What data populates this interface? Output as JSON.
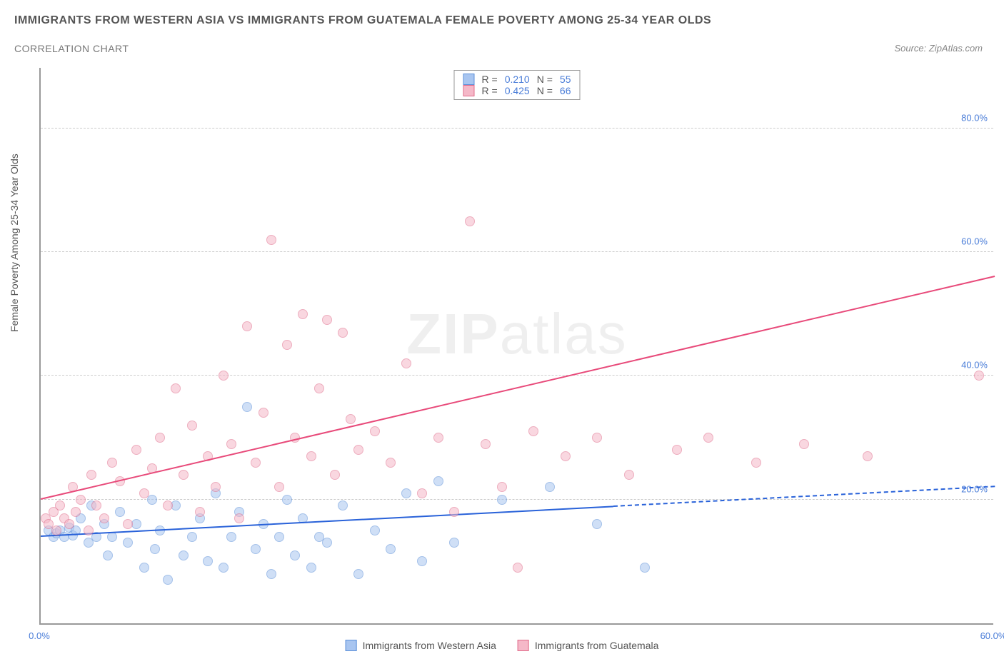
{
  "title": "IMMIGRANTS FROM WESTERN ASIA VS IMMIGRANTS FROM GUATEMALA FEMALE POVERTY AMONG 25-34 YEAR OLDS",
  "subtitle": "CORRELATION CHART",
  "source": "Source: ZipAtlas.com",
  "watermark": {
    "bold": "ZIP",
    "light": "atlas"
  },
  "ylabel": "Female Poverty Among 25-34 Year Olds",
  "chart": {
    "type": "scatter",
    "xlim": [
      0,
      60
    ],
    "ylim": [
      0,
      90
    ],
    "x_ticks": [
      {
        "v": 0,
        "l": "0.0%"
      },
      {
        "v": 60,
        "l": "60.0%"
      }
    ],
    "y_ticks_right": [
      {
        "v": 20,
        "l": "20.0%"
      },
      {
        "v": 40,
        "l": "40.0%"
      },
      {
        "v": 60,
        "l": "60.0%"
      },
      {
        "v": 80,
        "l": "80.0%"
      }
    ],
    "grid_y": [
      20,
      40,
      60,
      80
    ],
    "grid_color": "#cccccc",
    "background_color": "#ffffff",
    "axis_color": "#999999",
    "tick_label_color": "#4a7dd8",
    "marker_radius": 7,
    "marker_opacity": 0.55,
    "series": [
      {
        "name": "Immigrants from Western Asia",
        "fill": "#a8c5f0",
        "stroke": "#5b8fd8",
        "R": "0.210",
        "N": "55",
        "trend": {
          "x1": 0,
          "y1": 14,
          "x2": 60,
          "y2": 22,
          "color": "#2962d9",
          "solid_until_x": 36
        },
        "points": [
          [
            0.5,
            15
          ],
          [
            0.8,
            14
          ],
          [
            1.0,
            14.5
          ],
          [
            1.2,
            15
          ],
          [
            1.5,
            14
          ],
          [
            1.8,
            15.5
          ],
          [
            2.0,
            14.2
          ],
          [
            2.2,
            15
          ],
          [
            2.5,
            17
          ],
          [
            3.0,
            13
          ],
          [
            3.2,
            19
          ],
          [
            3.5,
            14
          ],
          [
            4.0,
            16
          ],
          [
            4.2,
            11
          ],
          [
            4.5,
            14
          ],
          [
            5.0,
            18
          ],
          [
            5.5,
            13
          ],
          [
            6.0,
            16
          ],
          [
            6.5,
            9
          ],
          [
            7.0,
            20
          ],
          [
            7.2,
            12
          ],
          [
            7.5,
            15
          ],
          [
            8.0,
            7
          ],
          [
            8.5,
            19
          ],
          [
            9.0,
            11
          ],
          [
            9.5,
            14
          ],
          [
            10,
            17
          ],
          [
            10.5,
            10
          ],
          [
            11,
            21
          ],
          [
            11.5,
            9
          ],
          [
            12,
            14
          ],
          [
            12.5,
            18
          ],
          [
            13,
            35
          ],
          [
            13.5,
            12
          ],
          [
            14,
            16
          ],
          [
            14.5,
            8
          ],
          [
            15,
            14
          ],
          [
            15.5,
            20
          ],
          [
            16,
            11
          ],
          [
            16.5,
            17
          ],
          [
            17,
            9
          ],
          [
            17.5,
            14
          ],
          [
            18,
            13
          ],
          [
            19,
            19
          ],
          [
            20,
            8
          ],
          [
            21,
            15
          ],
          [
            22,
            12
          ],
          [
            23,
            21
          ],
          [
            24,
            10
          ],
          [
            25,
            23
          ],
          [
            26,
            13
          ],
          [
            29,
            20
          ],
          [
            32,
            22
          ],
          [
            35,
            16
          ],
          [
            38,
            9
          ]
        ]
      },
      {
        "name": "Immigrants from Guatemala",
        "fill": "#f5b8c8",
        "stroke": "#e06b8a",
        "R": "0.425",
        "N": "66",
        "trend": {
          "x1": 0,
          "y1": 20,
          "x2": 60,
          "y2": 56,
          "color": "#e84a7a",
          "solid_until_x": 60
        },
        "points": [
          [
            0.3,
            17
          ],
          [
            0.5,
            16
          ],
          [
            0.8,
            18
          ],
          [
            1.0,
            15
          ],
          [
            1.2,
            19
          ],
          [
            1.5,
            17
          ],
          [
            1.8,
            16
          ],
          [
            2.0,
            22
          ],
          [
            2.2,
            18
          ],
          [
            2.5,
            20
          ],
          [
            3.0,
            15
          ],
          [
            3.2,
            24
          ],
          [
            3.5,
            19
          ],
          [
            4.0,
            17
          ],
          [
            4.5,
            26
          ],
          [
            5.0,
            23
          ],
          [
            5.5,
            16
          ],
          [
            6.0,
            28
          ],
          [
            6.5,
            21
          ],
          [
            7.0,
            25
          ],
          [
            7.5,
            30
          ],
          [
            8.0,
            19
          ],
          [
            8.5,
            38
          ],
          [
            9.0,
            24
          ],
          [
            9.5,
            32
          ],
          [
            10,
            18
          ],
          [
            10.5,
            27
          ],
          [
            11,
            22
          ],
          [
            11.5,
            40
          ],
          [
            12,
            29
          ],
          [
            12.5,
            17
          ],
          [
            13,
            48
          ],
          [
            13.5,
            26
          ],
          [
            14,
            34
          ],
          [
            14.5,
            62
          ],
          [
            15,
            22
          ],
          [
            15.5,
            45
          ],
          [
            16,
            30
          ],
          [
            16.5,
            50
          ],
          [
            17,
            27
          ],
          [
            17.5,
            38
          ],
          [
            18,
            49
          ],
          [
            18.5,
            24
          ],
          [
            19,
            47
          ],
          [
            19.5,
            33
          ],
          [
            20,
            28
          ],
          [
            21,
            31
          ],
          [
            22,
            26
          ],
          [
            23,
            42
          ],
          [
            24,
            21
          ],
          [
            25,
            30
          ],
          [
            26,
            18
          ],
          [
            27,
            65
          ],
          [
            28,
            29
          ],
          [
            29,
            22
          ],
          [
            30,
            9
          ],
          [
            31,
            31
          ],
          [
            33,
            27
          ],
          [
            35,
            30
          ],
          [
            37,
            24
          ],
          [
            40,
            28
          ],
          [
            42,
            30
          ],
          [
            45,
            26
          ],
          [
            48,
            29
          ],
          [
            52,
            27
          ],
          [
            59,
            40
          ]
        ]
      }
    ]
  },
  "legend_top_labels": {
    "R": "R =",
    "N": "N ="
  },
  "legend_bottom": [
    {
      "label": "Immigrants from Western Asia",
      "fill": "#a8c5f0",
      "stroke": "#5b8fd8"
    },
    {
      "label": "Immigrants from Guatemala",
      "fill": "#f5b8c8",
      "stroke": "#e06b8a"
    }
  ]
}
